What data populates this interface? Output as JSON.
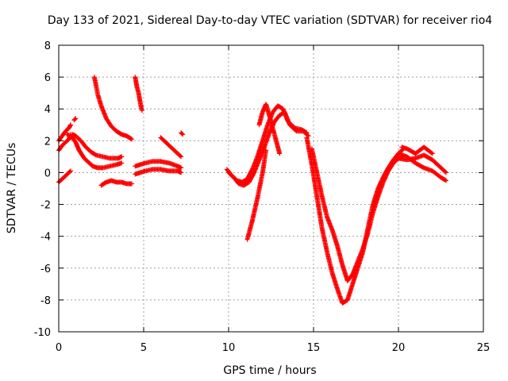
{
  "chart_data": {
    "type": "scatter",
    "title": "Day 133 of 2021, Sidereal Day-to-day VTEC variation (SDTVAR) for receiver rio4",
    "xlabel": "GPS time / hours",
    "ylabel": "SDTVAR / TECUs",
    "xlim": [
      0,
      25
    ],
    "ylim": [
      -10,
      8
    ],
    "xticks": [
      0,
      5,
      10,
      15,
      20,
      25
    ],
    "yticks": [
      -10,
      -8,
      -6,
      -4,
      -2,
      0,
      2,
      4,
      6,
      8
    ],
    "grid": true,
    "marker": "+",
    "color": "#ff0000",
    "series": [
      {
        "name": "s1",
        "x": [
          0.0,
          0.2,
          0.4,
          0.6,
          0.7
        ],
        "y": [
          1.4,
          1.7,
          1.9,
          2.1,
          2.4
        ]
      },
      {
        "name": "s2",
        "x": [
          0.0,
          0.2,
          0.4,
          0.6,
          0.7
        ],
        "y": [
          2.0,
          2.3,
          2.6,
          2.8,
          3.0
        ]
      },
      {
        "name": "s3",
        "x": [
          0.0,
          0.2,
          0.4,
          0.6,
          0.7
        ],
        "y": [
          -0.6,
          -0.4,
          -0.2,
          0.0,
          0.1
        ]
      },
      {
        "name": "s4",
        "x": [
          0.5,
          0.8,
          1.0,
          1.2,
          1.5,
          1.8,
          2.0,
          2.3,
          2.6,
          3.0,
          3.4,
          3.7
        ],
        "y": [
          2.4,
          2.2,
          1.9,
          1.4,
          0.9,
          0.6,
          0.4,
          0.3,
          0.3,
          0.4,
          0.5,
          0.6
        ]
      },
      {
        "name": "s5",
        "x": [
          0.8,
          1.0,
          1.3,
          1.6,
          1.9,
          2.2,
          2.6,
          3.0,
          3.5,
          3.7
        ],
        "y": [
          2.4,
          2.3,
          2.0,
          1.6,
          1.3,
          1.1,
          1.0,
          0.9,
          0.9,
          1.0
        ]
      },
      {
        "name": "s6",
        "x": [
          0.9,
          1.0
        ],
        "y": [
          3.3,
          3.4
        ]
      },
      {
        "name": "s7",
        "x": [
          2.1,
          2.3,
          2.5,
          2.8,
          3.1,
          3.4,
          3.7,
          4.0,
          4.3
        ],
        "y": [
          6.0,
          4.9,
          4.2,
          3.4,
          2.9,
          2.6,
          2.4,
          2.3,
          2.1
        ]
      },
      {
        "name": "s8",
        "x": [
          2.5,
          2.8,
          3.1,
          3.4,
          3.7,
          4.0,
          4.3
        ],
        "y": [
          -0.8,
          -0.6,
          -0.5,
          -0.6,
          -0.6,
          -0.7,
          -0.7
        ]
      },
      {
        "name": "s9",
        "x": [
          4.5,
          4.6,
          4.7,
          4.8,
          4.9
        ],
        "y": [
          6.0,
          5.4,
          5.0,
          4.4,
          3.9
        ]
      },
      {
        "name": "s10",
        "x": [
          4.5,
          4.8,
          5.1,
          5.5,
          6.0,
          6.5,
          7.0,
          7.2
        ],
        "y": [
          0.4,
          0.5,
          0.6,
          0.7,
          0.7,
          0.6,
          0.4,
          0.3
        ]
      },
      {
        "name": "s11",
        "x": [
          4.5,
          4.8,
          5.1,
          5.5,
          6.0,
          6.5,
          7.0,
          7.2
        ],
        "y": [
          -0.1,
          0.0,
          0.1,
          0.2,
          0.2,
          0.1,
          0.1,
          0.0
        ]
      },
      {
        "name": "s12",
        "x": [
          6.0,
          6.3,
          6.6,
          6.9,
          7.2
        ],
        "y": [
          2.2,
          1.9,
          1.6,
          1.3,
          1.0
        ]
      },
      {
        "name": "s13",
        "x": [
          7.2,
          7.3
        ],
        "y": [
          2.5,
          2.4
        ]
      },
      {
        "name": "s14",
        "x": [
          9.9,
          10.2,
          10.5,
          10.8,
          11.1,
          11.4,
          11.7,
          12.0,
          12.3,
          12.6,
          12.9,
          13.2,
          13.5,
          13.9,
          14.3,
          14.6
        ],
        "y": [
          0.2,
          -0.2,
          -0.5,
          -0.6,
          -0.4,
          0.2,
          1.0,
          2.0,
          3.0,
          3.8,
          4.2,
          4.0,
          3.2,
          2.8,
          2.7,
          2.5
        ]
      },
      {
        "name": "s15",
        "x": [
          10.0,
          10.3,
          10.6,
          10.9,
          11.2,
          11.5,
          11.8,
          12.1,
          12.4,
          12.7,
          13.0,
          13.3,
          13.6,
          14.0,
          14.4,
          14.7
        ],
        "y": [
          0.0,
          -0.3,
          -0.7,
          -0.8,
          -0.6,
          0.0,
          0.8,
          1.6,
          2.5,
          3.2,
          3.6,
          3.8,
          3.0,
          2.6,
          2.6,
          2.3
        ]
      },
      {
        "name": "s16",
        "x": [
          11.1,
          11.4,
          11.7,
          12.0,
          12.2
        ],
        "y": [
          -4.2,
          -3.0,
          -1.6,
          0.0,
          1.4
        ]
      },
      {
        "name": "s17",
        "x": [
          11.8,
          12.0,
          12.2,
          12.5,
          12.8,
          13.0
        ],
        "y": [
          3.0,
          3.8,
          4.3,
          3.2,
          2.0,
          1.2
        ]
      },
      {
        "name": "s18",
        "x": [
          14.6,
          14.9,
          15.2,
          15.5,
          15.8,
          16.1,
          16.4,
          16.7,
          17.0,
          17.3,
          17.6,
          17.9,
          18.2,
          18.5,
          18.8,
          19.1,
          19.4,
          19.7,
          20.0,
          20.3
        ],
        "y": [
          2.2,
          0.5,
          -1.5,
          -3.5,
          -5.0,
          -6.3,
          -7.3,
          -8.2,
          -8.0,
          -7.0,
          -6.0,
          -5.0,
          -3.5,
          -2.0,
          -1.0,
          -0.3,
          0.3,
          0.8,
          1.2,
          1.5
        ]
      },
      {
        "name": "s19",
        "x": [
          14.9,
          15.2,
          15.5,
          15.8,
          16.1,
          16.4,
          16.7,
          17.0,
          17.3,
          17.6,
          17.9,
          18.2,
          18.5,
          18.8,
          19.1,
          19.4,
          19.7,
          20.0,
          20.3
        ],
        "y": [
          1.5,
          0.0,
          -1.5,
          -2.8,
          -3.6,
          -4.6,
          -5.8,
          -6.8,
          -6.4,
          -5.6,
          -4.8,
          -3.8,
          -2.5,
          -1.5,
          -0.6,
          0.1,
          0.6,
          0.9,
          1.0
        ]
      },
      {
        "name": "s20",
        "x": [
          20.0,
          20.5,
          21.0,
          21.5,
          22.0,
          22.5,
          22.8
        ],
        "y": [
          0.9,
          0.8,
          0.9,
          1.1,
          0.8,
          0.3,
          0.0
        ]
      },
      {
        "name": "s21",
        "x": [
          20.0,
          20.5,
          21.0,
          21.5,
          22.0,
          22.5,
          22.8
        ],
        "y": [
          1.2,
          1.0,
          0.6,
          0.3,
          0.1,
          -0.3,
          -0.5
        ]
      },
      {
        "name": "s22",
        "x": [
          20.2,
          20.5,
          21.0,
          21.5,
          22.0
        ],
        "y": [
          1.6,
          1.5,
          1.2,
          1.6,
          1.2
        ]
      }
    ]
  }
}
